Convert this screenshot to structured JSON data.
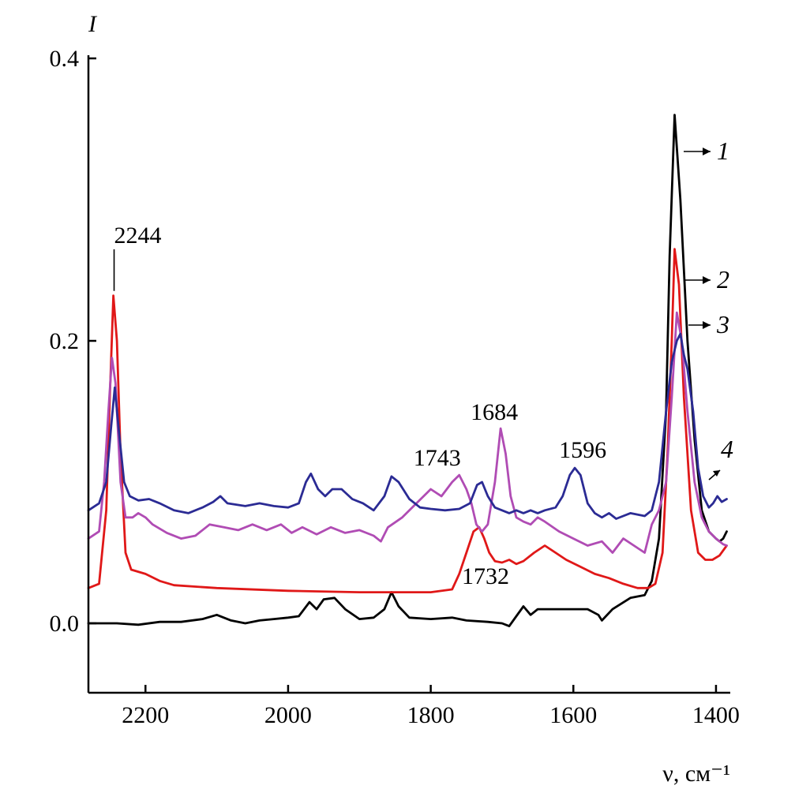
{
  "chart_data": {
    "type": "line",
    "ylabel": "I",
    "xlabel": "ν, см⁻¹",
    "xlim": [
      2280,
      1380
    ],
    "ylim": [
      -0.04,
      0.4
    ],
    "x_ticks": [
      2200,
      2000,
      1800,
      1600,
      1400
    ],
    "x_tick_labels": [
      "2200",
      "2000",
      "1800",
      "1600",
      "1400"
    ],
    "y_ticks": [
      0.0,
      0.2,
      0.4
    ],
    "y_tick_labels": [
      "0.0",
      "0.2",
      "0.4"
    ],
    "colors": {
      "1": "#000000",
      "2": "#e01818",
      "3": "#b04cb4",
      "4": "#2b2b94"
    },
    "series": [
      {
        "name": "1",
        "color": "#000000",
        "points": [
          [
            2280,
            0.0
          ],
          [
            2240,
            0.0
          ],
          [
            2210,
            -0.001
          ],
          [
            2180,
            0.001
          ],
          [
            2150,
            0.001
          ],
          [
            2120,
            0.003
          ],
          [
            2100,
            0.006
          ],
          [
            2080,
            0.002
          ],
          [
            2060,
            0.0
          ],
          [
            2040,
            0.002
          ],
          [
            2020,
            0.003
          ],
          [
            2000,
            0.004
          ],
          [
            1985,
            0.005
          ],
          [
            1970,
            0.015
          ],
          [
            1960,
            0.01
          ],
          [
            1950,
            0.017
          ],
          [
            1935,
            0.018
          ],
          [
            1920,
            0.01
          ],
          [
            1900,
            0.003
          ],
          [
            1880,
            0.004
          ],
          [
            1865,
            0.01
          ],
          [
            1855,
            0.022
          ],
          [
            1845,
            0.012
          ],
          [
            1830,
            0.004
          ],
          [
            1800,
            0.003
          ],
          [
            1770,
            0.004
          ],
          [
            1750,
            0.002
          ],
          [
            1720,
            0.001
          ],
          [
            1700,
            0.0
          ],
          [
            1690,
            -0.002
          ],
          [
            1680,
            0.005
          ],
          [
            1670,
            0.012
          ],
          [
            1660,
            0.006
          ],
          [
            1650,
            0.01
          ],
          [
            1620,
            0.01
          ],
          [
            1600,
            0.01
          ],
          [
            1580,
            0.01
          ],
          [
            1565,
            0.006
          ],
          [
            1560,
            0.002
          ],
          [
            1545,
            0.01
          ],
          [
            1520,
            0.018
          ],
          [
            1500,
            0.02
          ],
          [
            1490,
            0.03
          ],
          [
            1480,
            0.06
          ],
          [
            1470,
            0.15
          ],
          [
            1465,
            0.26
          ],
          [
            1458,
            0.36
          ],
          [
            1450,
            0.3
          ],
          [
            1440,
            0.2
          ],
          [
            1430,
            0.13
          ],
          [
            1420,
            0.08
          ],
          [
            1410,
            0.065
          ],
          [
            1400,
            0.06
          ],
          [
            1395,
            0.058
          ],
          [
            1390,
            0.06
          ],
          [
            1385,
            0.065
          ]
        ]
      },
      {
        "name": "2",
        "color": "#e01818",
        "points": [
          [
            2280,
            0.025
          ],
          [
            2265,
            0.028
          ],
          [
            2255,
            0.08
          ],
          [
            2250,
            0.16
          ],
          [
            2245,
            0.232
          ],
          [
            2240,
            0.2
          ],
          [
            2235,
            0.12
          ],
          [
            2228,
            0.05
          ],
          [
            2220,
            0.038
          ],
          [
            2200,
            0.035
          ],
          [
            2180,
            0.03
          ],
          [
            2160,
            0.027
          ],
          [
            2100,
            0.025
          ],
          [
            2000,
            0.023
          ],
          [
            1900,
            0.022
          ],
          [
            1800,
            0.022
          ],
          [
            1770,
            0.024
          ],
          [
            1760,
            0.035
          ],
          [
            1750,
            0.05
          ],
          [
            1740,
            0.065
          ],
          [
            1732,
            0.068
          ],
          [
            1725,
            0.06
          ],
          [
            1718,
            0.05
          ],
          [
            1710,
            0.044
          ],
          [
            1700,
            0.043
          ],
          [
            1690,
            0.045
          ],
          [
            1680,
            0.042
          ],
          [
            1670,
            0.044
          ],
          [
            1655,
            0.05
          ],
          [
            1640,
            0.055
          ],
          [
            1625,
            0.05
          ],
          [
            1610,
            0.045
          ],
          [
            1590,
            0.04
          ],
          [
            1570,
            0.035
          ],
          [
            1550,
            0.032
          ],
          [
            1530,
            0.028
          ],
          [
            1510,
            0.025
          ],
          [
            1495,
            0.025
          ],
          [
            1485,
            0.028
          ],
          [
            1475,
            0.05
          ],
          [
            1468,
            0.12
          ],
          [
            1462,
            0.2
          ],
          [
            1458,
            0.265
          ],
          [
            1452,
            0.24
          ],
          [
            1445,
            0.16
          ],
          [
            1435,
            0.08
          ],
          [
            1425,
            0.05
          ],
          [
            1415,
            0.045
          ],
          [
            1405,
            0.045
          ],
          [
            1395,
            0.048
          ],
          [
            1385,
            0.055
          ]
        ]
      },
      {
        "name": "3",
        "color": "#b04cb4",
        "points": [
          [
            2280,
            0.06
          ],
          [
            2265,
            0.065
          ],
          [
            2258,
            0.1
          ],
          [
            2252,
            0.15
          ],
          [
            2247,
            0.188
          ],
          [
            2242,
            0.17
          ],
          [
            2235,
            0.1
          ],
          [
            2228,
            0.075
          ],
          [
            2218,
            0.075
          ],
          [
            2210,
            0.078
          ],
          [
            2200,
            0.075
          ],
          [
            2190,
            0.07
          ],
          [
            2170,
            0.064
          ],
          [
            2150,
            0.06
          ],
          [
            2130,
            0.062
          ],
          [
            2110,
            0.07
          ],
          [
            2090,
            0.068
          ],
          [
            2070,
            0.066
          ],
          [
            2050,
            0.07
          ],
          [
            2030,
            0.066
          ],
          [
            2010,
            0.07
          ],
          [
            1995,
            0.064
          ],
          [
            1980,
            0.068
          ],
          [
            1960,
            0.063
          ],
          [
            1940,
            0.068
          ],
          [
            1920,
            0.064
          ],
          [
            1900,
            0.066
          ],
          [
            1880,
            0.062
          ],
          [
            1870,
            0.058
          ],
          [
            1860,
            0.068
          ],
          [
            1840,
            0.075
          ],
          [
            1820,
            0.085
          ],
          [
            1800,
            0.095
          ],
          [
            1785,
            0.09
          ],
          [
            1770,
            0.1
          ],
          [
            1760,
            0.105
          ],
          [
            1750,
            0.095
          ],
          [
            1743,
            0.085
          ],
          [
            1736,
            0.07
          ],
          [
            1728,
            0.065
          ],
          [
            1720,
            0.07
          ],
          [
            1710,
            0.1
          ],
          [
            1702,
            0.138
          ],
          [
            1695,
            0.12
          ],
          [
            1688,
            0.09
          ],
          [
            1680,
            0.075
          ],
          [
            1670,
            0.072
          ],
          [
            1660,
            0.07
          ],
          [
            1650,
            0.075
          ],
          [
            1640,
            0.072
          ],
          [
            1620,
            0.065
          ],
          [
            1600,
            0.06
          ],
          [
            1580,
            0.055
          ],
          [
            1560,
            0.058
          ],
          [
            1545,
            0.05
          ],
          [
            1530,
            0.06
          ],
          [
            1515,
            0.055
          ],
          [
            1500,
            0.05
          ],
          [
            1490,
            0.07
          ],
          [
            1480,
            0.08
          ],
          [
            1470,
            0.1
          ],
          [
            1462,
            0.16
          ],
          [
            1455,
            0.22
          ],
          [
            1448,
            0.2
          ],
          [
            1440,
            0.15
          ],
          [
            1430,
            0.1
          ],
          [
            1420,
            0.075
          ],
          [
            1410,
            0.065
          ],
          [
            1400,
            0.06
          ],
          [
            1390,
            0.056
          ],
          [
            1385,
            0.055
          ]
        ]
      },
      {
        "name": "4",
        "color": "#2b2b94",
        "points": [
          [
            2280,
            0.08
          ],
          [
            2265,
            0.085
          ],
          [
            2255,
            0.1
          ],
          [
            2248,
            0.14
          ],
          [
            2243,
            0.167
          ],
          [
            2238,
            0.14
          ],
          [
            2230,
            0.1
          ],
          [
            2222,
            0.09
          ],
          [
            2210,
            0.087
          ],
          [
            2195,
            0.088
          ],
          [
            2180,
            0.085
          ],
          [
            2160,
            0.08
          ],
          [
            2140,
            0.078
          ],
          [
            2120,
            0.082
          ],
          [
            2105,
            0.086
          ],
          [
            2095,
            0.09
          ],
          [
            2085,
            0.085
          ],
          [
            2060,
            0.083
          ],
          [
            2040,
            0.085
          ],
          [
            2020,
            0.083
          ],
          [
            2000,
            0.082
          ],
          [
            1985,
            0.085
          ],
          [
            1975,
            0.1
          ],
          [
            1968,
            0.106
          ],
          [
            1958,
            0.095
          ],
          [
            1948,
            0.09
          ],
          [
            1938,
            0.095
          ],
          [
            1925,
            0.095
          ],
          [
            1910,
            0.088
          ],
          [
            1895,
            0.085
          ],
          [
            1880,
            0.08
          ],
          [
            1865,
            0.09
          ],
          [
            1855,
            0.104
          ],
          [
            1845,
            0.1
          ],
          [
            1830,
            0.088
          ],
          [
            1815,
            0.082
          ],
          [
            1800,
            0.081
          ],
          [
            1780,
            0.08
          ],
          [
            1760,
            0.081
          ],
          [
            1745,
            0.085
          ],
          [
            1735,
            0.098
          ],
          [
            1728,
            0.1
          ],
          [
            1720,
            0.09
          ],
          [
            1710,
            0.082
          ],
          [
            1700,
            0.08
          ],
          [
            1690,
            0.078
          ],
          [
            1680,
            0.08
          ],
          [
            1670,
            0.078
          ],
          [
            1660,
            0.08
          ],
          [
            1650,
            0.078
          ],
          [
            1640,
            0.08
          ],
          [
            1625,
            0.082
          ],
          [
            1615,
            0.09
          ],
          [
            1605,
            0.105
          ],
          [
            1598,
            0.11
          ],
          [
            1590,
            0.105
          ],
          [
            1580,
            0.085
          ],
          [
            1570,
            0.078
          ],
          [
            1560,
            0.075
          ],
          [
            1550,
            0.078
          ],
          [
            1540,
            0.074
          ],
          [
            1520,
            0.078
          ],
          [
            1500,
            0.076
          ],
          [
            1490,
            0.08
          ],
          [
            1480,
            0.1
          ],
          [
            1470,
            0.15
          ],
          [
            1462,
            0.185
          ],
          [
            1455,
            0.2
          ],
          [
            1450,
            0.205
          ],
          [
            1445,
            0.19
          ],
          [
            1440,
            0.18
          ],
          [
            1432,
            0.15
          ],
          [
            1425,
            0.11
          ],
          [
            1418,
            0.09
          ],
          [
            1410,
            0.082
          ],
          [
            1404,
            0.085
          ],
          [
            1398,
            0.09
          ],
          [
            1392,
            0.086
          ],
          [
            1385,
            0.088
          ]
        ]
      }
    ],
    "annotations": [
      {
        "text": "2244",
        "x": 2244,
        "y": 0.232
      },
      {
        "text": "1743",
        "x": 1760,
        "y": 0.105
      },
      {
        "text": "1684",
        "x": 1702,
        "y": 0.138
      },
      {
        "text": "1596",
        "x": 1598,
        "y": 0.11
      },
      {
        "text": "1732",
        "x": 1732,
        "y": 0.068
      }
    ],
    "series_labels": [
      "1",
      "2",
      "3",
      "4"
    ]
  }
}
